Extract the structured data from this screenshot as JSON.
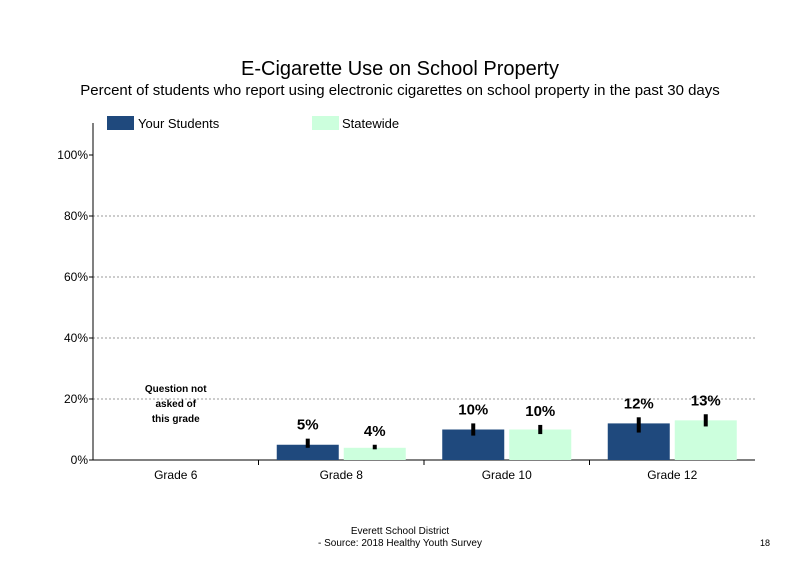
{
  "chart_data": {
    "type": "bar",
    "title": "E-Cigarette Use on School Property",
    "subtitle": "Percent of students who report using electronic cigarettes on school property in the past 30 days",
    "categories": [
      "Grade 6",
      "Grade 8",
      "Grade 10",
      "Grade 12"
    ],
    "series": [
      {
        "name": "Your Students",
        "color": "#1f497d",
        "values": [
          null,
          5,
          10,
          12
        ],
        "labels": [
          "",
          "5%",
          "10%",
          "12%"
        ],
        "error_low": [
          null,
          4,
          8,
          9
        ],
        "error_high": [
          null,
          7,
          12,
          14
        ]
      },
      {
        "name": "Statewide",
        "color": "#ccffdd",
        "values": [
          null,
          4,
          10,
          13
        ],
        "labels": [
          "",
          "4%",
          "10%",
          "13%"
        ],
        "error_low": [
          null,
          3.5,
          8.5,
          11
        ],
        "error_high": [
          null,
          5,
          11.5,
          15
        ]
      }
    ],
    "ylim": [
      0,
      100
    ],
    "yticks": [
      "0%",
      "20%",
      "40%",
      "60%",
      "80%",
      "100%"
    ],
    "ytick_values": [
      0,
      20,
      40,
      60,
      80,
      100
    ],
    "grid": "dotted horizontal",
    "legend": "top-left",
    "annotation": [
      "Question not",
      "asked of",
      "this grade"
    ]
  },
  "footer": {
    "line1": "Everett School District",
    "line2": "- Source: 2018 Healthy  Youth Survey"
  },
  "page_number": "18"
}
